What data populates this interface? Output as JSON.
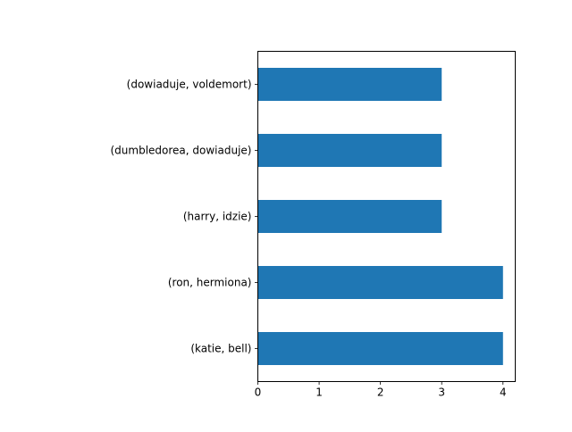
{
  "chart_data": {
    "type": "bar",
    "orientation": "horizontal",
    "categories": [
      "(katie, bell)",
      "(ron, hermiona)",
      "(harry, idzie)",
      "(dumbledorea, dowiaduje)",
      "(dowiaduje, voldemort)"
    ],
    "values": [
      4,
      4,
      3,
      3,
      3
    ],
    "xlim": [
      0,
      4.2
    ],
    "xticks": [
      "0",
      "1",
      "2",
      "3",
      "4"
    ],
    "title": "",
    "xlabel": "",
    "ylabel": "",
    "grid": false,
    "bar_color": "#1f77b4"
  }
}
